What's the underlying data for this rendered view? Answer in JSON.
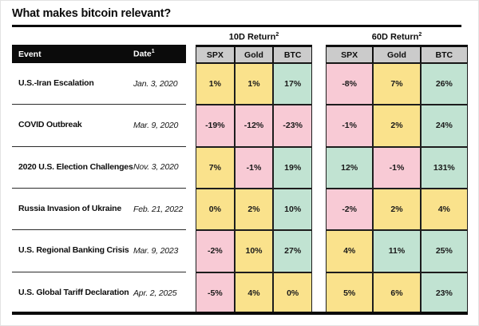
{
  "title": "What makes bitcoin relevant?",
  "chart_data": {
    "type": "table",
    "title": "What makes bitcoin relevant?",
    "event_column_header": "Event",
    "date_column_header": "Date",
    "date_header_footnote": "1",
    "column_groups": [
      {
        "label": "10D Return",
        "footnote": "2",
        "columns": [
          "SPX",
          "Gold",
          "BTC"
        ]
      },
      {
        "label": "60D Return",
        "footnote": "2",
        "columns": [
          "SPX",
          "Gold",
          "BTC"
        ]
      }
    ],
    "palette": {
      "yellow": "#FAE28C",
      "pink": "#F8CAD5",
      "green": "#C1E3D2",
      "header_gray": "#CBCBCB",
      "header_bar_black": "#0B0B0B"
    },
    "rows": [
      {
        "event": "U.S.-Iran Escalation",
        "date": "Jan. 3, 2020",
        "d10": [
          {
            "value": "1%",
            "tone": "yellow"
          },
          {
            "value": "1%",
            "tone": "yellow"
          },
          {
            "value": "17%",
            "tone": "green"
          }
        ],
        "d60": [
          {
            "value": "-8%",
            "tone": "pink"
          },
          {
            "value": "7%",
            "tone": "yellow"
          },
          {
            "value": "26%",
            "tone": "green"
          }
        ]
      },
      {
        "event": "COVID Outbreak",
        "date": "Mar. 9, 2020",
        "d10": [
          {
            "value": "-19%",
            "tone": "pink"
          },
          {
            "value": "-12%",
            "tone": "pink"
          },
          {
            "value": "-23%",
            "tone": "pink"
          }
        ],
        "d60": [
          {
            "value": "-1%",
            "tone": "pink"
          },
          {
            "value": "2%",
            "tone": "yellow"
          },
          {
            "value": "24%",
            "tone": "green"
          }
        ]
      },
      {
        "event": "2020 U.S. Election Challenges",
        "date": "Nov. 3, 2020",
        "d10": [
          {
            "value": "7%",
            "tone": "yellow"
          },
          {
            "value": "-1%",
            "tone": "pink"
          },
          {
            "value": "19%",
            "tone": "green"
          }
        ],
        "d60": [
          {
            "value": "12%",
            "tone": "green"
          },
          {
            "value": "-1%",
            "tone": "pink"
          },
          {
            "value": "131%",
            "tone": "green"
          }
        ]
      },
      {
        "event": "Russia Invasion of Ukraine",
        "date": "Feb. 21, 2022",
        "d10": [
          {
            "value": "0%",
            "tone": "yellow"
          },
          {
            "value": "2%",
            "tone": "yellow"
          },
          {
            "value": "10%",
            "tone": "green"
          }
        ],
        "d60": [
          {
            "value": "-2%",
            "tone": "pink"
          },
          {
            "value": "2%",
            "tone": "yellow"
          },
          {
            "value": "4%",
            "tone": "yellow"
          }
        ]
      },
      {
        "event": "U.S. Regional Banking Crisis",
        "date": "Mar. 9, 2023",
        "d10": [
          {
            "value": "-2%",
            "tone": "pink"
          },
          {
            "value": "10%",
            "tone": "yellow"
          },
          {
            "value": "27%",
            "tone": "green"
          }
        ],
        "d60": [
          {
            "value": "4%",
            "tone": "yellow"
          },
          {
            "value": "11%",
            "tone": "green"
          },
          {
            "value": "25%",
            "tone": "green"
          }
        ]
      },
      {
        "event": "U.S. Global Tariff Declaration",
        "date": "Apr. 2, 2025",
        "d10": [
          {
            "value": "-5%",
            "tone": "pink"
          },
          {
            "value": "4%",
            "tone": "yellow"
          },
          {
            "value": "0%",
            "tone": "yellow"
          }
        ],
        "d60": [
          {
            "value": "5%",
            "tone": "yellow"
          },
          {
            "value": "6%",
            "tone": "yellow"
          },
          {
            "value": "23%",
            "tone": "green"
          }
        ]
      }
    ]
  }
}
